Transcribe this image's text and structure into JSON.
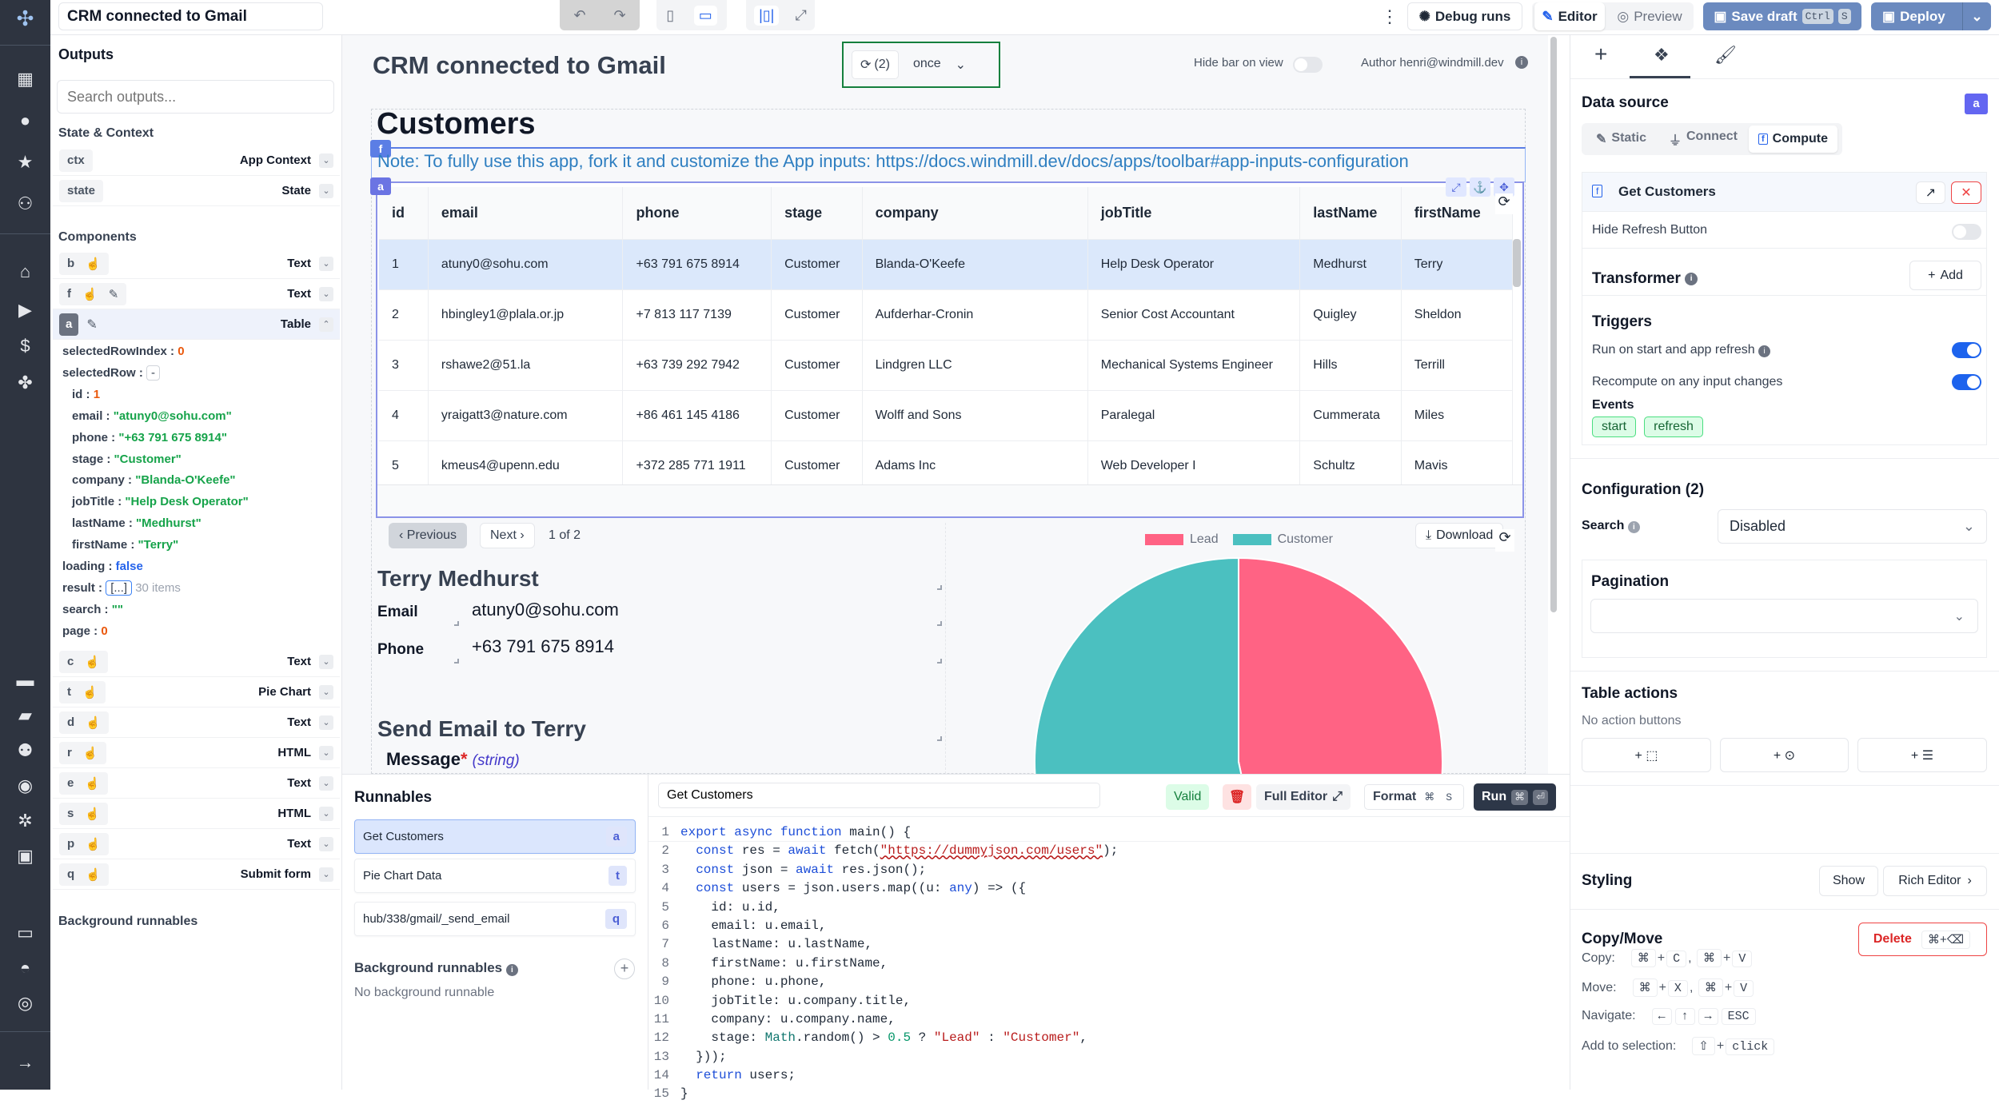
{
  "topbar": {
    "title_input": "CRM connected to Gmail",
    "debug_runs": "Debug runs",
    "editor": "Editor",
    "preview": "Preview",
    "save_draft": "Save draft",
    "save_kbd": [
      "Ctrl",
      "S"
    ],
    "deploy": "Deploy"
  },
  "canvas": {
    "app_title": "CRM connected to Gmail",
    "refresh_count": "(2)",
    "refresh_mode": "once",
    "hide_bar_label": "Hide bar on view",
    "author": "Author henri@windmill.dev"
  },
  "left": {
    "outputs_title": "Outputs",
    "search_placeholder": "Search outputs...",
    "state_title": "State & Context",
    "state_items": [
      {
        "id": "ctx",
        "type": "App Context"
      },
      {
        "id": "state",
        "type": "State"
      }
    ],
    "components_title": "Components",
    "components_top": [
      {
        "id": "b",
        "type": "Text"
      },
      {
        "id": "f",
        "type": "Text"
      },
      {
        "id": "a",
        "type": "Table"
      }
    ],
    "table_outputs": {
      "selectedRowIndex": "0",
      "selectedRow": "-",
      "row": [
        {
          "k": "id",
          "v": "1",
          "t": "num"
        },
        {
          "k": "email",
          "v": "\"atuny0@sohu.com\"",
          "t": "str"
        },
        {
          "k": "phone",
          "v": "\"+63 791 675 8914\"",
          "t": "str"
        },
        {
          "k": "stage",
          "v": "\"Customer\"",
          "t": "str"
        },
        {
          "k": "company",
          "v": "\"Blanda-O'Keefe\"",
          "t": "str"
        },
        {
          "k": "jobTitle",
          "v": "\"Help Desk Operator\"",
          "t": "str"
        },
        {
          "k": "lastName",
          "v": "\"Medhurst\"",
          "t": "str"
        },
        {
          "k": "firstName",
          "v": "\"Terry\"",
          "t": "str"
        }
      ],
      "loading": "false",
      "result_box": "[...]",
      "result_count": "30 items",
      "search": "\"\"",
      "page": "0"
    },
    "components_bottom": [
      {
        "id": "c",
        "type": "Text"
      },
      {
        "id": "t",
        "type": "Pie Chart"
      },
      {
        "id": "d",
        "type": "Text"
      },
      {
        "id": "r",
        "type": "HTML"
      },
      {
        "id": "e",
        "type": "Text"
      },
      {
        "id": "s",
        "type": "HTML"
      },
      {
        "id": "p",
        "type": "Text"
      },
      {
        "id": "q",
        "type": "Submit form"
      }
    ],
    "background_title": "Background runnables"
  },
  "table": {
    "title": "Customers",
    "note": "Note: To fully use this app, fork it and customize the App inputs: https://docs.windmill.dev/docs/apps/toolbar#app-inputs-configuration",
    "badge_f": "f",
    "badge_a": "a",
    "columns": [
      "id",
      "email",
      "phone",
      "stage",
      "company",
      "jobTitle",
      "lastName",
      "firstName"
    ],
    "rows": [
      [
        "1",
        "atuny0@sohu.com",
        "+63 791 675 8914",
        "Customer",
        "Blanda-O'Keefe",
        "Help Desk Operator",
        "Medhurst",
        "Terry"
      ],
      [
        "2",
        "hbingley1@plala.or.jp",
        "+7 813 117 7139",
        "Customer",
        "Aufderhar-Cronin",
        "Senior Cost Accountant",
        "Quigley",
        "Sheldon"
      ],
      [
        "3",
        "rshawe2@51.la",
        "+63 739 292 7942",
        "Customer",
        "Lindgren LLC",
        "Mechanical Systems Engineer",
        "Hills",
        "Terrill"
      ],
      [
        "4",
        "yraigatt3@nature.com",
        "+86 461 145 4186",
        "Customer",
        "Wolff and Sons",
        "Paralegal",
        "Cummerata",
        "Miles"
      ],
      [
        "5",
        "kmeus4@upenn.edu",
        "+372 285 771 1911",
        "Customer",
        "Adams Inc",
        "Web Developer I",
        "Schultz",
        "Mavis"
      ]
    ],
    "selected_row": 0,
    "prev": "‹ Previous",
    "next": "Next ›",
    "page_info": "1 of 2",
    "download": "Download"
  },
  "details": {
    "name": "Terry Medhurst",
    "email_label": "Email",
    "email": "atuny0@sohu.com",
    "phone_label": "Phone",
    "phone": "+63 791 675 8914",
    "send_title": "Send Email to Terry",
    "message_label": "Message",
    "message_required": "*",
    "message_type": "(string)"
  },
  "chart_data": {
    "type": "pie",
    "categories": [
      "Lead",
      "Customer"
    ],
    "values": [
      14,
      16
    ],
    "colors": [
      "#ff6384",
      "#4bc0c0"
    ],
    "legend": "top"
  },
  "runnables": {
    "title": "Runnables",
    "items": [
      {
        "label": "Get Customers",
        "tag": "a"
      },
      {
        "label": "Pie Chart Data",
        "tag": "t"
      },
      {
        "label": "hub/338/gmail/_send_email",
        "tag": "q"
      }
    ],
    "background_title": "Background runnables",
    "no_background": "No background runnable"
  },
  "editor": {
    "name": "Get Customers",
    "valid": "Valid",
    "full_editor": "Full Editor",
    "format": "Format",
    "format_kbd": [
      "⌘",
      "S"
    ],
    "run": "Run",
    "lines": [
      [
        [
          "kw",
          "export async function "
        ],
        [
          "",
          "main() {"
        ]
      ],
      [
        [
          "",
          "  "
        ],
        [
          "kw",
          "const "
        ],
        [
          "",
          "res = "
        ],
        [
          "kw",
          "await "
        ],
        [
          "",
          "fetch("
        ],
        [
          "url",
          "\"https://dummyjson.com/users\""
        ],
        [
          "",
          ");"
        ]
      ],
      [
        [
          "",
          "  "
        ],
        [
          "kw",
          "const "
        ],
        [
          "",
          "json = "
        ],
        [
          "kw",
          "await "
        ],
        [
          "",
          "res.json();"
        ]
      ],
      [
        [
          "",
          "  "
        ],
        [
          "kw",
          "const "
        ],
        [
          "",
          "users = json.users.map((u: "
        ],
        [
          "kw",
          "any"
        ],
        [
          "",
          ") => ({"
        ]
      ],
      [
        [
          "",
          "    id: u.id,"
        ]
      ],
      [
        [
          "",
          "    email: u.email,"
        ]
      ],
      [
        [
          "",
          "    lastName: u.lastName,"
        ]
      ],
      [
        [
          "",
          "    firstName: u.firstName,"
        ]
      ],
      [
        [
          "",
          "    phone: u.phone,"
        ]
      ],
      [
        [
          "",
          "    jobTitle: u.company.title,"
        ]
      ],
      [
        [
          "",
          "    company: u.company.name,"
        ]
      ],
      [
        [
          "",
          "    stage: "
        ],
        [
          "cls",
          "Math"
        ],
        [
          "",
          ".random() > "
        ],
        [
          "num",
          "0.5"
        ],
        [
          "",
          " ? "
        ],
        [
          "str",
          "\"Lead\""
        ],
        [
          "",
          " : "
        ],
        [
          "str",
          "\"Customer\""
        ],
        [
          "",
          ","
        ]
      ],
      [
        [
          "",
          "  }));"
        ]
      ],
      [
        [
          "",
          "  "
        ],
        [
          "kw",
          "return "
        ],
        [
          "",
          "users;"
        ]
      ],
      [
        [
          "",
          "}"
        ]
      ]
    ]
  },
  "right": {
    "data_source": "Data source",
    "badge": "a",
    "source_tabs": [
      "Static",
      "Connect",
      "Compute"
    ],
    "active_source": "Compute",
    "runnable_name": "Get Customers",
    "hide_refresh": "Hide Refresh Button",
    "transformer": "Transformer",
    "add": "Add",
    "triggers": "Triggers",
    "run_on_start": "Run on start and app refresh",
    "recompute": "Recompute on any input changes",
    "events": "Events",
    "event_tags": [
      "start",
      "refresh"
    ],
    "configuration": "Configuration (2)",
    "search_label": "Search",
    "search_value": "Disabled",
    "pagination": "Pagination",
    "table_actions": "Table actions",
    "no_actions": "No action buttons",
    "styling": "Styling",
    "show": "Show",
    "rich_editor": "Rich Editor",
    "copy_move": "Copy/Move",
    "delete": "Delete",
    "delete_kbd": "⌘+⌫",
    "copy_label": "Copy:",
    "move_label": "Move:",
    "navigate_label": "Navigate:",
    "add_sel_label": "Add to selection:",
    "copy_keys": [
      "⌘",
      "C",
      "⌘",
      "V"
    ],
    "move_keys": [
      "⌘",
      "X",
      "⌘",
      "V"
    ],
    "navigate_keys": [
      "←",
      "↑",
      "→",
      "ESC"
    ],
    "add_sel_keys": [
      "⇧",
      "click"
    ]
  },
  "colors": {
    "accent": "#5b7ee5",
    "toggle_on": "#1d63ed",
    "nav_bg": "#2e3440",
    "deploy": "#6b8abf",
    "selected_row": "#dbe8fb"
  }
}
